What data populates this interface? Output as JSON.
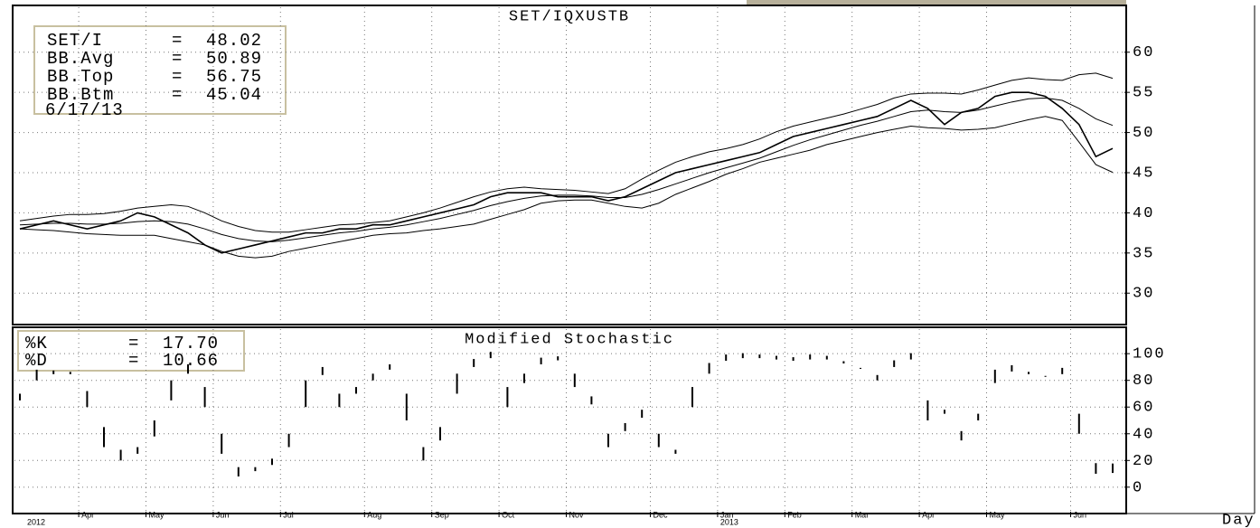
{
  "chart_data": [
    {
      "type": "line",
      "title": "SET/IQXUSTB",
      "legend": {
        "entries": [
          {
            "name": "SET/I",
            "value": 48.02
          },
          {
            "name": "BB.Avg",
            "value": 50.89
          },
          {
            "name": "BB.Top",
            "value": 56.75
          },
          {
            "name": "BB.Btm",
            "value": 45.04
          }
        ],
        "separator": "=",
        "date": "6/17/13"
      },
      "ylim": [
        26.2,
        65.6
      ],
      "yticks": [
        30,
        35,
        40,
        45,
        50,
        55,
        60
      ],
      "grid": true,
      "series": [
        {
          "name": "SET/I",
          "color": "#000000",
          "values": [
            38,
            38.5,
            39,
            38.5,
            38,
            38.5,
            39,
            40,
            39.5,
            38.5,
            37.5,
            36,
            35,
            35.5,
            36,
            36.5,
            37,
            37.5,
            37.5,
            38,
            38,
            38.5,
            38.5,
            39,
            39.5,
            40,
            40.5,
            41,
            42,
            42.5,
            42.5,
            42.5,
            42,
            42,
            42,
            41.5,
            42,
            43,
            44,
            45,
            45.5,
            46,
            46.5,
            47,
            47.5,
            48.5,
            49.5,
            50,
            50.5,
            51,
            51.5,
            52,
            53,
            54,
            53,
            51,
            52.5,
            53,
            54.5,
            55,
            55,
            54.5,
            53,
            51,
            47,
            48.02
          ]
        },
        {
          "name": "BB.Avg",
          "color": "#000000",
          "values": [
            38.5,
            38.6,
            38.7,
            38.7,
            38.6,
            38.6,
            38.7,
            38.9,
            39.0,
            38.9,
            38.6,
            38.0,
            37.3,
            36.8,
            36.5,
            36.4,
            36.6,
            36.9,
            37.2,
            37.5,
            37.7,
            38.0,
            38.2,
            38.5,
            38.9,
            39.3,
            39.8,
            40.3,
            40.9,
            41.4,
            41.8,
            42.1,
            42.2,
            42.2,
            42.1,
            41.9,
            41.9,
            42.3,
            42.9,
            43.6,
            44.3,
            45.0,
            45.6,
            46.2,
            46.8,
            47.6,
            48.4,
            49.1,
            49.7,
            50.3,
            50.9,
            51.4,
            52.0,
            52.6,
            52.8,
            52.6,
            52.5,
            52.8,
            53.3,
            53.8,
            54.2,
            54.3,
            54.0,
            53.0,
            51.7,
            50.89
          ]
        },
        {
          "name": "BB.Top",
          "color": "#000000",
          "values": [
            39.0,
            39.3,
            39.6,
            39.8,
            39.8,
            39.9,
            40.2,
            40.6,
            40.8,
            41.0,
            40.8,
            40.0,
            39.0,
            38.3,
            37.8,
            37.6,
            37.6,
            37.9,
            38.2,
            38.5,
            38.6,
            38.8,
            39.0,
            39.5,
            40.0,
            40.6,
            41.3,
            42.0,
            42.6,
            43.0,
            43.2,
            43.0,
            42.9,
            42.8,
            42.6,
            42.4,
            43.0,
            44.2,
            45.3,
            46.3,
            47.0,
            47.6,
            48.0,
            48.5,
            49.2,
            50.1,
            50.8,
            51.3,
            51.8,
            52.3,
            52.9,
            53.5,
            54.3,
            54.8,
            54.9,
            54.9,
            54.8,
            55.3,
            55.9,
            56.5,
            56.8,
            56.6,
            56.5,
            57.2,
            57.4,
            56.75
          ]
        },
        {
          "name": "BB.Btm",
          "color": "#000000",
          "values": [
            38.0,
            37.9,
            37.8,
            37.6,
            37.4,
            37.3,
            37.2,
            37.2,
            37.2,
            36.8,
            36.4,
            36.0,
            35.2,
            34.6,
            34.4,
            34.6,
            35.2,
            35.6,
            36.0,
            36.4,
            36.8,
            37.2,
            37.4,
            37.5,
            37.8,
            38.0,
            38.3,
            38.6,
            39.2,
            39.8,
            40.4,
            41.2,
            41.5,
            41.6,
            41.6,
            41.2,
            40.8,
            40.6,
            41.2,
            42.3,
            43.1,
            43.9,
            44.8,
            45.5,
            46.3,
            46.8,
            47.3,
            47.8,
            48.5,
            49.0,
            49.5,
            50.0,
            50.4,
            50.8,
            50.6,
            50.5,
            50.3,
            50.4,
            50.6,
            51.1,
            51.6,
            52.0,
            51.5,
            48.8,
            46.0,
            45.04
          ]
        }
      ]
    },
    {
      "type": "range-bars",
      "title": "Modified Stochastic",
      "legend": {
        "entries": [
          {
            "name": "%K",
            "value": {
              "value": 17.7,
              "label": "17.70"
            }
          },
          {
            "name": "%D",
            "value": 10.66
          }
        ],
        "separator": "="
      },
      "ylim": [
        -18.4,
        118.4
      ],
      "yticks": [
        0,
        20,
        40,
        60,
        80,
        100
      ],
      "grid": true,
      "categories": [
        null,
        null,
        null,
        null,
        "Apr",
        null,
        null,
        null,
        "May",
        null,
        null,
        null,
        "Jun",
        null,
        null,
        null,
        "Jul",
        null,
        null,
        null,
        null,
        "Aug",
        null,
        null,
        null,
        "Sep",
        null,
        null,
        null,
        "Oct",
        null,
        null,
        null,
        "Nov",
        null,
        null,
        null,
        null,
        "Dec",
        null,
        null,
        null,
        "Jan",
        null,
        null,
        null,
        "Feb",
        null,
        null,
        null,
        "Mar",
        null,
        null,
        null,
        "Apr",
        null,
        null,
        null,
        "May",
        null,
        null,
        null,
        null,
        "Jun",
        null,
        null
      ],
      "x_years": [
        "2012",
        "2013"
      ],
      "x_label": "Day",
      "series": [
        {
          "name": "%K",
          "color": "#000000",
          "values": [
            70,
            88,
            86,
            85,
            60,
            30,
            20,
            30,
            50,
            80,
            92,
            60,
            25,
            8,
            15,
            20,
            40,
            80,
            90,
            60,
            75,
            85,
            92,
            50,
            20,
            45,
            85,
            96,
            100,
            60,
            85,
            97,
            98,
            75,
            62,
            30,
            48,
            58,
            30,
            25,
            75,
            93,
            98,
            99,
            98,
            97,
            96,
            98,
            97,
            93,
            88,
            80,
            95,
            99,
            50,
            58,
            35,
            55,
            88,
            90,
            85,
            82,
            88,
            40,
            10,
            17.7
          ]
        },
        {
          "name": "%D",
          "color": "#000000",
          "values": [
            65,
            80,
            86,
            86,
            72,
            45,
            28,
            25,
            38,
            65,
            85,
            75,
            40,
            15,
            12,
            18,
            30,
            60,
            84,
            70,
            70,
            80,
            88,
            70,
            30,
            35,
            70,
            90,
            98,
            75,
            78,
            92,
            95,
            85,
            68,
            40,
            42,
            52,
            40,
            28,
            60,
            85,
            96,
            98,
            98,
            97,
            96,
            97,
            97,
            94,
            90,
            84,
            90,
            97,
            65,
            55,
            42,
            50,
            78,
            88,
            86,
            84,
            86,
            55,
            18,
            10.66
          ]
        }
      ]
    }
  ]
}
